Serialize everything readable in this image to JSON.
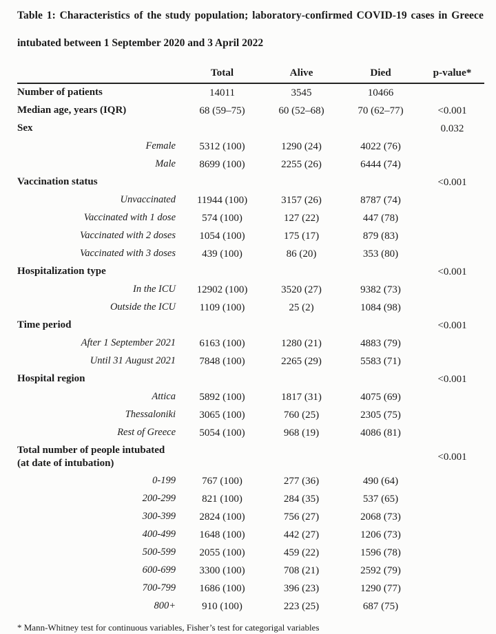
{
  "page": {
    "title_line1": "Table 1: Characteristics of the study population; laboratory-confirmed COVID-19 cases in Greece",
    "title_line2": "intubated between 1 September 2020 and 3 April 2022",
    "footnote": "* Mann-Whitney test for continuous variables, Fisher’s test for categorigal variables"
  },
  "colors": {
    "background": "#fcfcfb",
    "text": "#1a1a1a",
    "header_rule": "#222222"
  },
  "table": {
    "columns": [
      "",
      "Total",
      "Alive",
      "Died",
      "p-value*"
    ],
    "rows": [
      {
        "type": "cat",
        "label": "Number of patients",
        "total": "14011",
        "alive": "3545",
        "died": "10466",
        "p": ""
      },
      {
        "type": "cat",
        "label": "Median age, years (IQR)",
        "total": "68 (59–75)",
        "alive": "60 (52–68)",
        "died": "70 (62–77)",
        "p": "<0.001"
      },
      {
        "type": "cat",
        "label": "Sex",
        "total": "",
        "alive": "",
        "died": "",
        "p": "0.032"
      },
      {
        "type": "sub",
        "label": "Female",
        "total": "5312 (100)",
        "alive": "1290 (24)",
        "died": "4022 (76)",
        "p": ""
      },
      {
        "type": "sub",
        "label": "Male",
        "total": "8699 (100)",
        "alive": "2255 (26)",
        "died": "6444 (74)",
        "p": ""
      },
      {
        "type": "cat",
        "label": "Vaccination status",
        "total": "",
        "alive": "",
        "died": "",
        "p": "<0.001"
      },
      {
        "type": "sub",
        "label": "Unvaccinated",
        "total": "11944 (100)",
        "alive": "3157 (26)",
        "died": "8787 (74)",
        "p": ""
      },
      {
        "type": "sub",
        "label": "Vaccinated with 1 dose",
        "total": "574 (100)",
        "alive": "127 (22)",
        "died": "447 (78)",
        "p": ""
      },
      {
        "type": "sub",
        "label": "Vaccinated with 2 doses",
        "total": "1054 (100)",
        "alive": "175 (17)",
        "died": "879 (83)",
        "p": ""
      },
      {
        "type": "sub",
        "label": "Vaccinated with 3 doses",
        "total": "439 (100)",
        "alive": "86 (20)",
        "died": "353 (80)",
        "p": ""
      },
      {
        "type": "cat",
        "label": "Hospitalization type",
        "total": "",
        "alive": "",
        "died": "",
        "p": "<0.001"
      },
      {
        "type": "sub",
        "label": "In the ICU",
        "total": "12902 (100)",
        "alive": "3520 (27)",
        "died": "9382 (73)",
        "p": ""
      },
      {
        "type": "sub",
        "label": "Outside the ICU",
        "total": "1109 (100)",
        "alive": "25 (2)",
        "died": "1084 (98)",
        "p": ""
      },
      {
        "type": "cat",
        "label": "Time period",
        "total": "",
        "alive": "",
        "died": "",
        "p": "<0.001"
      },
      {
        "type": "sub",
        "label": "After 1 September 2021",
        "total": "6163 (100)",
        "alive": "1280 (21)",
        "died": "4883 (79)",
        "p": ""
      },
      {
        "type": "sub",
        "label": "Until 31 August 2021",
        "total": "7848 (100)",
        "alive": "2265 (29)",
        "died": "5583 (71)",
        "p": ""
      },
      {
        "type": "cat",
        "label": "Hospital region",
        "total": "",
        "alive": "",
        "died": "",
        "p": "<0.001"
      },
      {
        "type": "sub",
        "label": "Attica",
        "total": "5892 (100)",
        "alive": "1817 (31)",
        "died": "4075 (69)",
        "p": ""
      },
      {
        "type": "sub",
        "label": "Thessaloniki",
        "total": "3065 (100)",
        "alive": "760 (25)",
        "died": "2305 (75)",
        "p": ""
      },
      {
        "type": "sub",
        "label": "Rest of Greece",
        "total": "5054 (100)",
        "alive": "968 (19)",
        "died": "4086 (81)",
        "p": ""
      },
      {
        "type": "cat",
        "two_line": true,
        "label": "Total number of people intubated\n(at date of intubation)",
        "total": "",
        "alive": "",
        "died": "",
        "p": "<0.001"
      },
      {
        "type": "sub",
        "label": "0-199",
        "total": "767 (100)",
        "alive": "277 (36)",
        "died": "490 (64)",
        "p": ""
      },
      {
        "type": "sub",
        "label": "200-299",
        "total": "821 (100)",
        "alive": "284 (35)",
        "died": "537 (65)",
        "p": ""
      },
      {
        "type": "sub",
        "label": "300-399",
        "total": "2824 (100)",
        "alive": "756 (27)",
        "died": "2068 (73)",
        "p": ""
      },
      {
        "type": "sub",
        "label": "400-499",
        "total": "1648 (100)",
        "alive": "442 (27)",
        "died": "1206 (73)",
        "p": ""
      },
      {
        "type": "sub",
        "label": "500-599",
        "total": "2055 (100)",
        "alive": "459 (22)",
        "died": "1596 (78)",
        "p": ""
      },
      {
        "type": "sub",
        "label": "600-699",
        "total": "3300 (100)",
        "alive": "708 (21)",
        "died": "2592 (79)",
        "p": ""
      },
      {
        "type": "sub",
        "label": "700-799",
        "total": "1686 (100)",
        "alive": "396 (23)",
        "died": "1290 (77)",
        "p": ""
      },
      {
        "type": "sub",
        "label": "800+",
        "total": "910 (100)",
        "alive": "223 (25)",
        "died": "687 (75)",
        "p": ""
      }
    ]
  }
}
